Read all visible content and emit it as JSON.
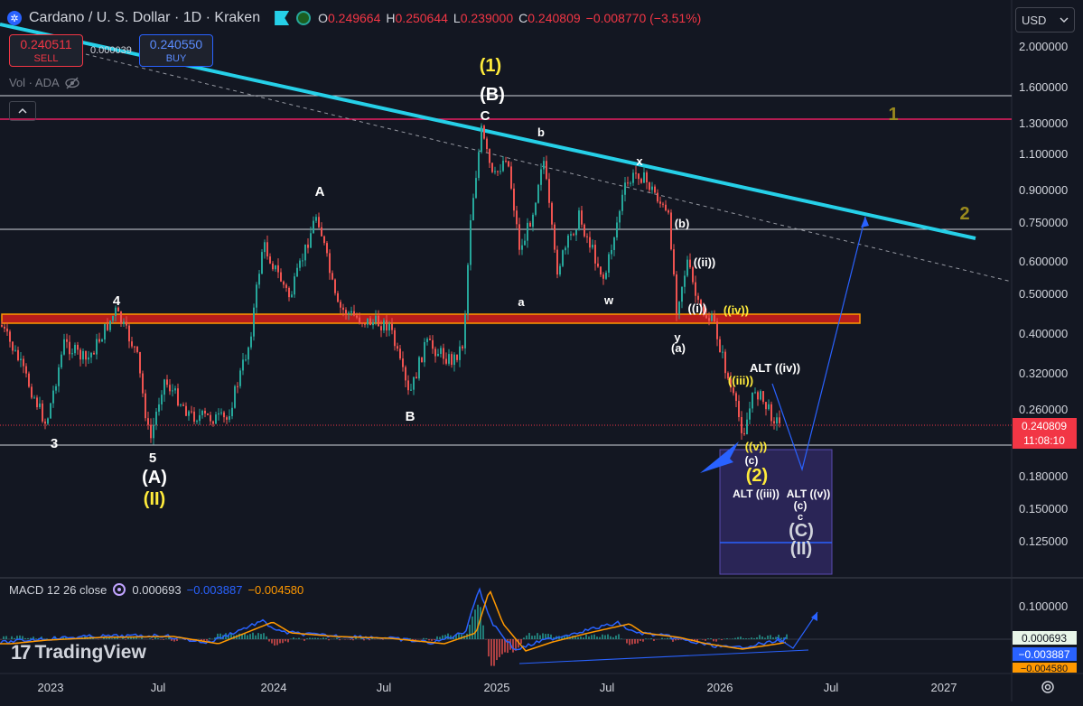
{
  "header": {
    "symbol_title": "Cardano / U. S. Dollar · 1D · Kraken",
    "ohlc": [
      {
        "k": "O",
        "v": "0.249664"
      },
      {
        "k": "H",
        "v": "0.250644"
      },
      {
        "k": "L",
        "v": "0.239000"
      },
      {
        "k": "C",
        "v": "0.240809"
      }
    ],
    "change": "−0.008770 (−3.51%)",
    "icons": [
      "cardano-logo-icon",
      "flag-icon",
      "status-dot-icon"
    ]
  },
  "trade": {
    "sell_price": "0.240511",
    "sell_label": "SELL",
    "spread": "0.000039",
    "buy_price": "0.240550",
    "buy_label": "BUY"
  },
  "volume_legend": {
    "label": "Vol · ADA",
    "icon": "eye-off-icon"
  },
  "currency": {
    "label": "USD"
  },
  "price_axis": {
    "ticks": [
      "2.000000",
      "1.600000",
      "1.300000",
      "1.100000",
      "0.900000",
      "0.750000",
      "0.600000",
      "0.500000",
      "0.400000",
      "0.320000",
      "0.260000",
      "0.180000",
      "0.150000",
      "0.125000"
    ],
    "last_price": "0.240809",
    "countdown": "11:08:10"
  },
  "time_axis": {
    "ticks": [
      "2023",
      "Jul",
      "2024",
      "Jul",
      "2025",
      "Jul",
      "2026",
      "Jul",
      "2027"
    ]
  },
  "annotations": {
    "wave_1_top": "(1)",
    "wave_B_top": "(B)",
    "C": "C",
    "b": "b",
    "x": "x",
    "A": "A",
    "four": "4",
    "three": "3",
    "five": "5",
    "paren_A": "(A)",
    "roman_II": "(II)",
    "B": "B",
    "a": "a",
    "w": "w",
    "paren_b": "(b)",
    "ii": "((ii))",
    "i": "((i))",
    "iv": "((iv))",
    "y": "y",
    "paren_a": "(a)",
    "alt_iv": "ALT ((iv))",
    "iii": "((iii))",
    "v": "((v))",
    "paren_c": "(c)",
    "paren_2": "(2)",
    "alt_iii": "ALT ((iii))",
    "alt_v": "ALT ((v))",
    "paren_c2": "(c)",
    "c_small": "c",
    "paren_C": "(C)",
    "paren_ii_big": "(II)",
    "target_1": "1",
    "target_2": "2"
  },
  "macd": {
    "label": "MACD 12 26 close",
    "icon": "settings-icon",
    "val1": "0.000693",
    "val2": "−0.003887",
    "val3": "−0.004580",
    "axis_tick": "0.100000",
    "tag1": "0.000693",
    "tag2": "−0.003887",
    "tag3": "−0.004580"
  },
  "branding": {
    "label": "TradingView",
    "icon": "tradingview-logo-icon"
  },
  "colors": {
    "background": "#131722",
    "trendline": "#26d0e8",
    "resistance_band": "#f23645",
    "magenta_line": "#e91e63",
    "yellow_label": "#ffeb3b",
    "olive_label": "#9a8a1e",
    "projection": "#2962ff"
  }
}
